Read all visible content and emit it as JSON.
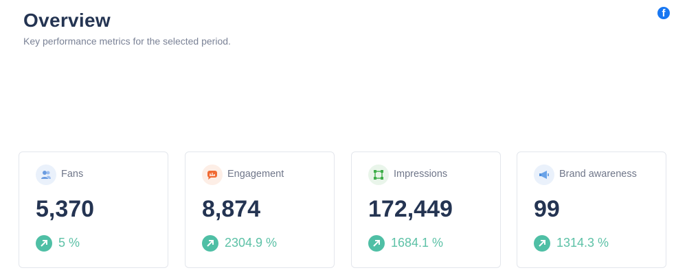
{
  "header": {
    "title": "Overview",
    "subtitle": "Key performance metrics for the selected period.",
    "platform_icon": "facebook-icon"
  },
  "colors": {
    "title": "#243452",
    "trend_up": "#4fbfa5"
  },
  "cards": [
    {
      "label": "Fans",
      "value": "5,370",
      "change": "5 %",
      "icon": "users-icon"
    },
    {
      "label": "Engagement",
      "value": "8,874",
      "change": "2304.9 %",
      "icon": "chat-bubble-icon"
    },
    {
      "label": "Impressions",
      "value": "172,449",
      "change": "1684.1 %",
      "icon": "frame-icon"
    },
    {
      "label": "Brand awareness",
      "value": "99",
      "change": "1314.3 %",
      "icon": "megaphone-icon"
    }
  ]
}
